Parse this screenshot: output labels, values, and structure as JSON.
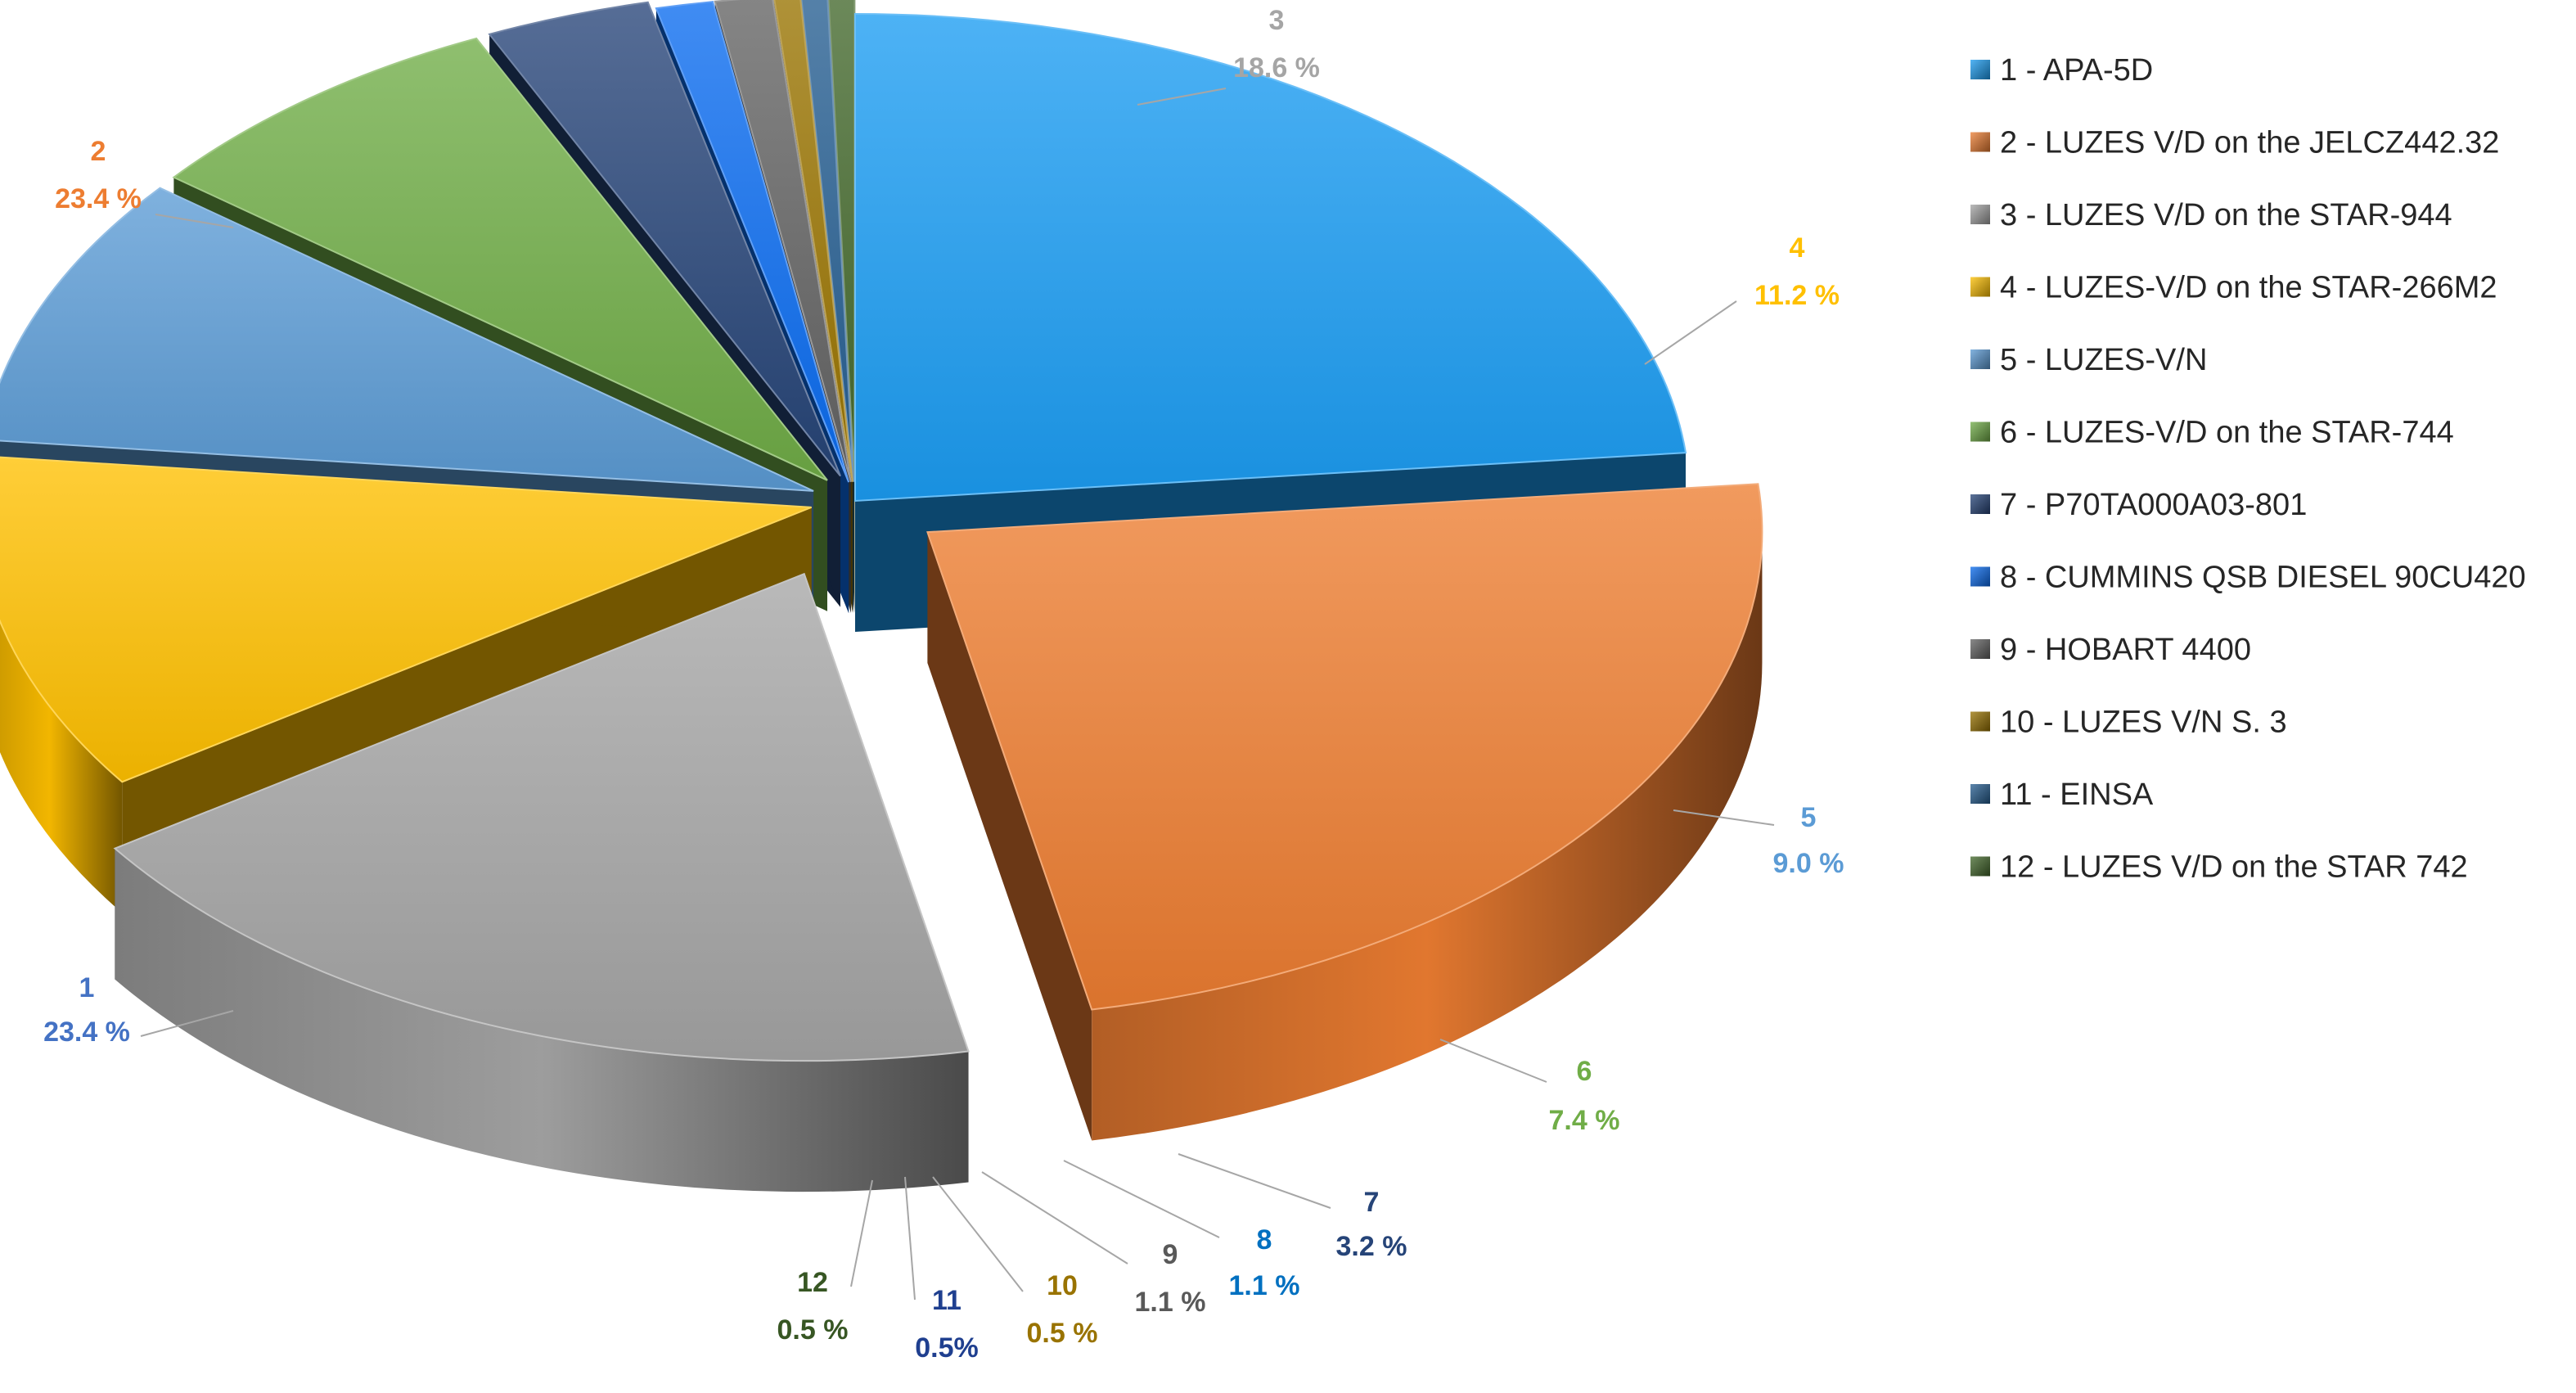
{
  "chart_data": {
    "type": "pie",
    "style": "3d-exploded",
    "categories": [
      "1",
      "2",
      "3",
      "4",
      "5",
      "6",
      "7",
      "8",
      "9",
      "10",
      "11",
      "12"
    ],
    "legend_entries": [
      "1  -  APA-5D",
      "2  -  LUZES V/D on the JELCZ442.32",
      "3  -  LUZES V/D on the STAR-944",
      "4  -  LUZES-V/D on the STAR-266M2",
      "5  -  LUZES-V/N",
      "6  -  LUZES-V/D on the STAR-744",
      "7  -  P70TA000A03-801",
      "8  -  CUMMINS QSB DIESEL 90CU420",
      "9  -  HOBART 4400",
      "10  -  LUZES V/N S. 3",
      "11  -  EINSA",
      "12  -  LUZES V/D on the STAR 742"
    ],
    "values": [
      23.4,
      23.4,
      18.6,
      11.2,
      9.0,
      7.4,
      3.2,
      1.1,
      1.1,
      0.5,
      0.5,
      0.5
    ],
    "value_labels": [
      "23.4 %",
      "23.4 %",
      "18.6 %",
      "11.2 %",
      "9.0 %",
      "7.4 %",
      "3.2 %",
      "1.1 %",
      "1.1 %",
      "0.5 %",
      "0.5%",
      "0.5 %"
    ],
    "colors": [
      "#1b9cf2",
      "#ed7d31",
      "#a5a5a5",
      "#ffc000",
      "#5b9bd5",
      "#70ad47",
      "#264478",
      "#0a6cf0",
      "#636363",
      "#997300",
      "#255e91",
      "#43682b"
    ],
    "label_colors": [
      "#4472c4",
      "#ed7d31",
      "#a5a5a5",
      "#ffc000",
      "#5b9bd5",
      "#70ad47",
      "#264478",
      "#0070c0",
      "#595959",
      "#997300",
      "#1f3f8f",
      "#375623"
    ],
    "legend_position": "right",
    "title": ""
  }
}
